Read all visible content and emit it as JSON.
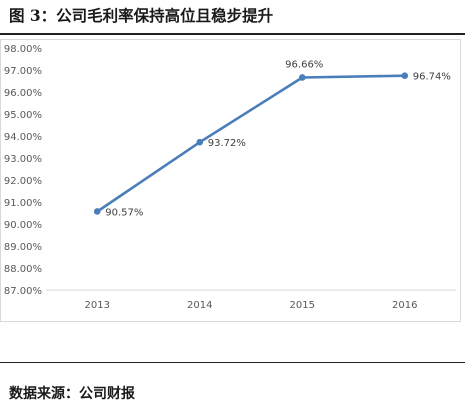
{
  "figure": {
    "title": "图 3：公司毛利率保持高位且稳步提升",
    "source": "数据来源：公司财报"
  },
  "chart_data": {
    "type": "line",
    "title": "",
    "xlabel": "",
    "ylabel": "",
    "categories": [
      "2013",
      "2014",
      "2015",
      "2016"
    ],
    "series": [
      {
        "name": "",
        "values": [
          90.57,
          93.72,
          96.66,
          96.74
        ],
        "labels": [
          "90.57%",
          "93.72%",
          "96.66%",
          "96.74%"
        ],
        "color": "#4a7ebb"
      }
    ],
    "ylim": [
      87,
      98
    ],
    "y_ticks": [
      "87.00%",
      "88.00%",
      "89.00%",
      "90.00%",
      "91.00%",
      "92.00%",
      "93.00%",
      "94.00%",
      "95.00%",
      "96.00%",
      "97.00%",
      "98.00%"
    ],
    "grid": false,
    "legend": "none",
    "colors": {
      "line": "#4a7ebb",
      "axis": "#d9d9d9",
      "tick_text": "#595959"
    }
  }
}
